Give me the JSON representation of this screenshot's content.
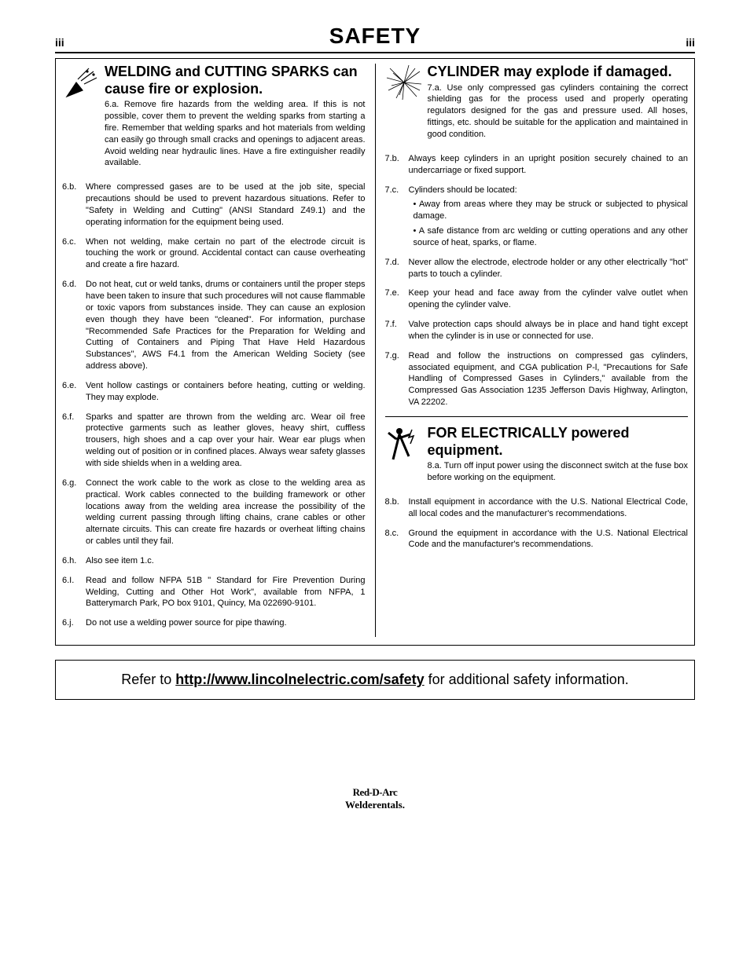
{
  "header": {
    "page_num_left": "iii",
    "title": "SAFETY",
    "page_num_right": "iii"
  },
  "left_section": {
    "heading": "WELDING and CUTTING SPARKS can cause fire or explosion.",
    "icon": "welding-sparks-icon",
    "first_num": "6.a.",
    "first_text": "Remove fire hazards from the welding area. If this is not possible, cover them to prevent the welding sparks from starting a fire. Remember that welding sparks and hot materials from welding can easily go through small cracks and openings to adjacent areas. Avoid welding near hydraulic lines. Have a fire extinguisher readily available.",
    "items": [
      {
        "num": "6.b.",
        "text": "Where compressed gases are to be used at the job site, special precautions should be used to prevent hazardous situations. Refer to \"Safety in Welding and Cutting\" (ANSI Standard Z49.1) and the operating information for the equipment being used."
      },
      {
        "num": "6.c.",
        "text": "When not welding, make certain no part of the electrode circuit is touching the work or ground. Accidental contact can cause overheating and create a fire hazard."
      },
      {
        "num": "6.d.",
        "text": "Do not heat, cut or weld tanks, drums or containers until the proper steps have been taken to insure that such procedures will not cause flammable or toxic vapors from substances inside. They can cause an explosion even though they have been \"cleaned\". For information, purchase \"Recommended Safe Practices for the Preparation for Welding and Cutting of Containers and Piping That Have Held Hazardous Substances\", AWS F4.1 from the American Welding Society (see address above)."
      },
      {
        "num": "6.e.",
        "text": "Vent hollow castings or containers before heating, cutting or welding. They may explode."
      },
      {
        "num": "6.f.",
        "text": "Sparks and spatter are thrown from the welding arc. Wear oil free protective garments such as leather gloves, heavy shirt, cuffless trousers, high shoes and a cap over your hair. Wear ear plugs when welding out of position or in confined places. Always wear safety glasses with side shields when in a welding area."
      },
      {
        "num": "6.g.",
        "text": "Connect the work cable to the work as close to the welding area as practical. Work cables connected to the building framework or other locations away from the welding area increase the possibility of the welding current passing through lifting chains, crane cables or other alternate circuits. This can create fire hazards or overheat lifting chains or cables until they fail."
      },
      {
        "num": "6.h.",
        "text": "Also see item 1.c."
      },
      {
        "num": "6.I.",
        "text": "Read and follow NFPA 51B \" Standard for Fire Prevention During Welding, Cutting and Other Hot Work\", available from NFPA, 1 Batterymarch Park, PO box 9101, Quincy, Ma 022690-9101."
      },
      {
        "num": "6.j.",
        "text": "Do not use a welding power source for pipe thawing."
      }
    ]
  },
  "right_section_a": {
    "heading": "CYLINDER may explode if damaged.",
    "icon": "cylinder-explode-icon",
    "first_num": "7.a.",
    "first_text": "Use only compressed gas cylinders containing the correct shielding gas for the process used and properly operating regulators designed for the gas and pressure used. All hoses, fittings, etc. should be suitable for the application and maintained in good condition.",
    "items": [
      {
        "num": "7.b.",
        "text": "Always keep cylinders in an upright position securely chained to an undercarriage or fixed support."
      },
      {
        "num": "7.c.",
        "text": "Cylinders should be located:",
        "bullets": [
          "Away from areas where they may be struck or subjected to physical damage.",
          "A safe distance from arc welding or cutting operations and any other source of heat, sparks, or flame."
        ]
      },
      {
        "num": "7.d.",
        "text": "Never allow the electrode, electrode holder or any other electrically \"hot\" parts to touch a cylinder."
      },
      {
        "num": "7.e.",
        "text": "Keep your head and face away from the cylinder valve outlet when opening the cylinder valve."
      },
      {
        "num": "7.f.",
        "text": "Valve protection caps should always be in place and hand tight except when the cylinder is in use or connected for use."
      },
      {
        "num": "7.g.",
        "text": "Read and follow the instructions on compressed gas cylinders, associated equipment, and CGA publication P-l, \"Precautions for Safe Handling of Compressed Gases in Cylinders,\" available from the Compressed Gas Association 1235 Jefferson Davis Highway, Arlington, VA 22202."
      }
    ]
  },
  "right_section_b": {
    "heading": "FOR ELECTRICALLY powered equipment.",
    "icon": "electric-shock-icon",
    "first_num": "8.a.",
    "first_text": "Turn off input power using the disconnect switch at the fuse box before working on the equipment.",
    "items": [
      {
        "num": "8.b.",
        "text": "Install equipment in accordance with the U.S. National Electrical Code, all local codes and the manufacturer's recommendations."
      },
      {
        "num": "8.c.",
        "text": "Ground the equipment in accordance with the U.S. National Electrical Code and the manufacturer's recommendations."
      }
    ]
  },
  "bottom_box": {
    "prefix": "Refer to ",
    "link": "http://www.lincolnelectric.com/safety",
    "suffix": " for additional safety information."
  },
  "footer": {
    "line1": "Red-D-Arc",
    "line2": "Welderentals."
  }
}
